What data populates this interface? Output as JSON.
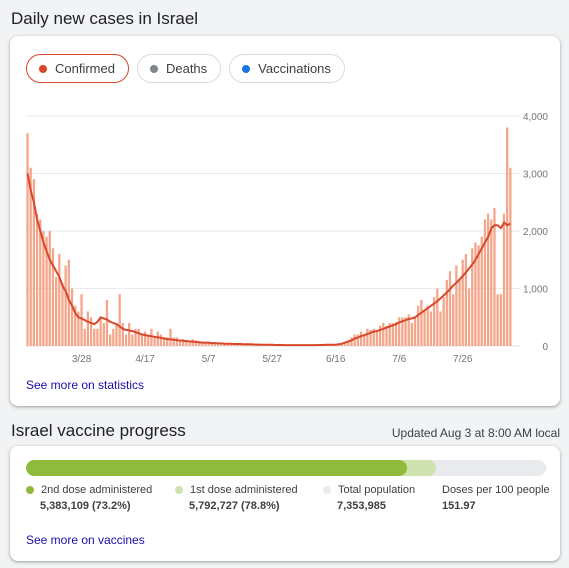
{
  "cases": {
    "title": "Daily new cases in Israel",
    "chips": [
      {
        "label": "Confirmed",
        "color": "#d9472b",
        "active": true
      },
      {
        "label": "Deaths",
        "color": "#80868b",
        "active": false
      },
      {
        "label": "Vaccinations",
        "color": "#1a73e8",
        "active": false
      }
    ],
    "see_more": "See more on statistics"
  },
  "chart_data": {
    "type": "bar",
    "title": "",
    "x_tick_labels": [
      "3/28",
      "4/17",
      "5/7",
      "5/27",
      "6/16",
      "7/6",
      "7/26"
    ],
    "y_tick_labels": [
      "4,000",
      "3,000",
      "2,000",
      "1,000",
      "0"
    ],
    "ylim": [
      0,
      4000
    ],
    "grid": true,
    "bar_color": "#f4a58a",
    "line_color": "#d9472b",
    "start_date": "3/11",
    "end_date": "8/2",
    "series": [
      {
        "name": "Confirmed",
        "values": [
          3700,
          3100,
          2900,
          2300,
          2200,
          2000,
          1900,
          2000,
          1700,
          1200,
          1600,
          1100,
          1400,
          1500,
          1000,
          700,
          600,
          900,
          300,
          600,
          500,
          300,
          300,
          500,
          400,
          800,
          200,
          300,
          400,
          900,
          400,
          200,
          400,
          200,
          300,
          300,
          200,
          250,
          200,
          300,
          150,
          250,
          200,
          150,
          150,
          300,
          150,
          150,
          100,
          120,
          100,
          80,
          120,
          100,
          80,
          60,
          60,
          80,
          40,
          50,
          40,
          60,
          50,
          40,
          30,
          40,
          30,
          40,
          30,
          50,
          30,
          30,
          20,
          20,
          30,
          20,
          20,
          20,
          20,
          20,
          20,
          20,
          10,
          10,
          10,
          10,
          10,
          20,
          20,
          10,
          10,
          20,
          20,
          20,
          20,
          20,
          30,
          20,
          20,
          50,
          70,
          100,
          150,
          200,
          200,
          250,
          200,
          300,
          280,
          300,
          260,
          350,
          400,
          350,
          400,
          400,
          420,
          500,
          500,
          500,
          550,
          400,
          500,
          700,
          800,
          600,
          700,
          600,
          850,
          1000,
          600,
          850,
          1150,
          1300,
          900,
          1400,
          1150,
          1500,
          1600,
          1000,
          1700,
          1800,
          1750,
          1900,
          2200,
          2300,
          2200,
          2400,
          900,
          900,
          2300,
          3800,
          3100
        ]
      },
      {
        "name": "7-day average",
        "values": [
          3000,
          2700,
          2500,
          2200,
          2000,
          1800,
          1650,
          1500,
          1400,
          1300,
          1200,
          1050,
          950,
          800,
          700,
          580,
          500,
          480,
          450,
          420,
          400,
          380,
          420,
          500,
          480,
          460,
          420,
          400,
          380,
          340,
          300,
          280,
          270,
          260,
          240,
          220,
          200,
          190,
          180,
          170,
          160,
          150,
          140,
          130,
          120,
          115,
          110,
          100,
          95,
          90,
          85,
          80,
          75,
          70,
          65,
          60,
          60,
          55,
          50,
          50,
          45,
          45,
          40,
          40,
          40,
          35,
          35,
          35,
          30,
          30,
          30,
          28,
          25,
          25,
          22,
          20,
          20,
          20,
          18,
          18,
          18,
          15,
          15,
          15,
          15,
          15,
          15,
          15,
          15,
          15,
          15,
          15,
          18,
          18,
          20,
          20,
          20,
          25,
          30,
          40,
          60,
          80,
          100,
          130,
          150,
          170,
          190,
          210,
          230,
          250,
          260,
          280,
          300,
          320,
          340,
          360,
          380,
          410,
          430,
          450,
          470,
          480,
          500,
          540,
          580,
          620,
          660,
          700,
          740,
          780,
          830,
          880,
          930,
          990,
          1050,
          1100,
          1160,
          1220,
          1280,
          1350,
          1420,
          1500,
          1600,
          1700,
          1800,
          1900,
          2050,
          2100,
          2100,
          2050,
          2150,
          2100,
          2130
        ]
      }
    ]
  },
  "vaccine": {
    "title": "Israel vaccine progress",
    "updated": "Updated Aug 3 at 8:00 AM local",
    "dose2_fraction": 0.732,
    "dose1_fraction": 0.788,
    "dose2_color": "#8fba3c",
    "dose1_color": "#cfe2b0",
    "population_color": "#e8eaed",
    "legend": [
      {
        "label": "2nd dose administered",
        "value": "5,383,109 (73.2%)"
      },
      {
        "label": "1st dose administered",
        "value": "5,792,727 (78.8%)"
      },
      {
        "label": "Total population",
        "value": "7,353,985"
      },
      {
        "label": "Doses per 100 people",
        "value": "151.97"
      }
    ],
    "see_more": "See more on vaccines"
  }
}
